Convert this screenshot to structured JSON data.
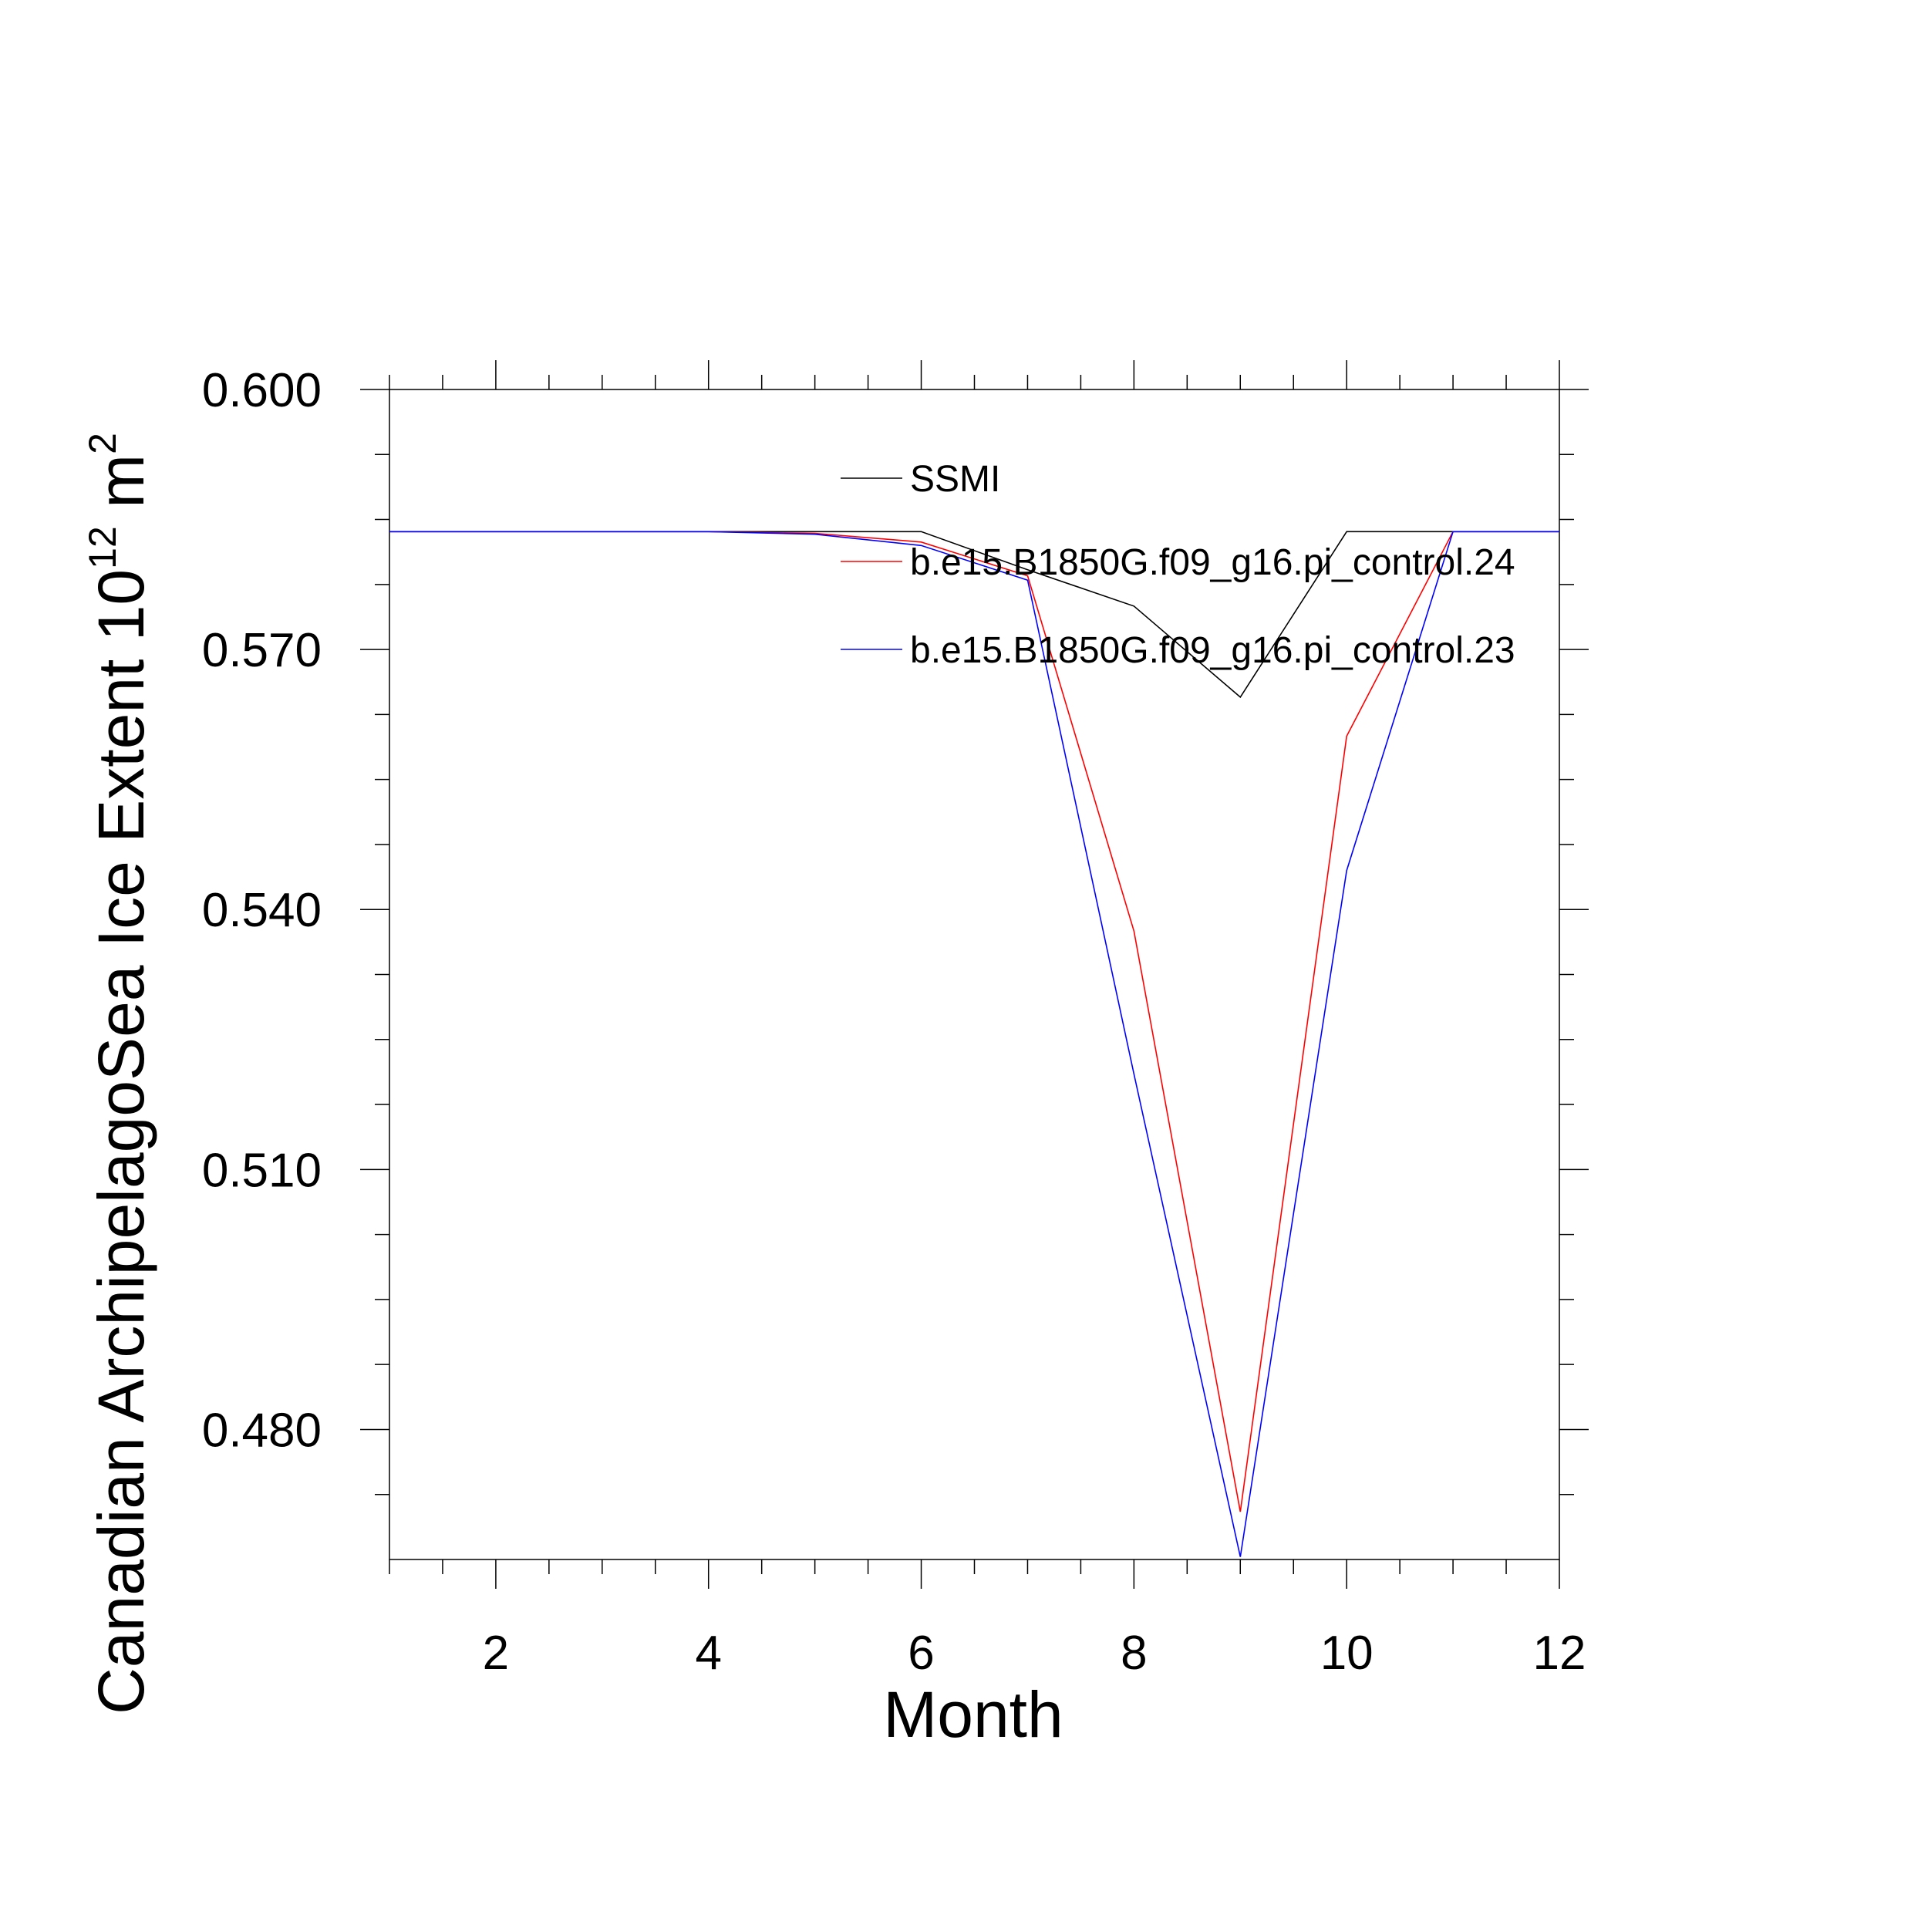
{
  "chart_data": {
    "type": "line",
    "title": "",
    "xlabel": "Month",
    "ylabel": "Canadian ArchipelagoSea Ice Extent 10",
    "ylabel_exponent": "12",
    "ylabel_unit": " m",
    "ylabel_unit_exponent": "2",
    "xlim": [
      1,
      12
    ],
    "ylim": [
      0.465,
      0.6
    ],
    "x_ticks": [
      2,
      4,
      6,
      8,
      10,
      12
    ],
    "x_tick_labels": [
      "2",
      "4",
      "6",
      "8",
      "10",
      "12"
    ],
    "y_ticks": [
      0.48,
      0.51,
      0.54,
      0.57,
      0.6
    ],
    "y_tick_labels": [
      "0.480",
      "0.510",
      "0.540",
      "0.570",
      "0.600"
    ],
    "grid": false,
    "legend_position": "top-right (inside plot)",
    "x": [
      1,
      2,
      3,
      4,
      5,
      6,
      7,
      8,
      9,
      10,
      11,
      12
    ],
    "series": [
      {
        "name": "SSMI",
        "color": "#000000",
        "values": [
          0.5836,
          0.5836,
          0.5836,
          0.5836,
          0.5836,
          0.5836,
          0.5792,
          0.575,
          0.5645,
          0.5836,
          0.5836,
          0.5836
        ]
      },
      {
        "name": "b.e15.B1850G.f09_g16.pi_control.24",
        "color": "#ff0000",
        "values": [
          0.5836,
          0.5836,
          0.5836,
          0.5836,
          0.5834,
          0.5824,
          0.5785,
          0.5375,
          0.4705,
          0.56,
          0.5836,
          0.5836
        ]
      },
      {
        "name": "b.e15.B1850G.f09_g16.pi_control.23",
        "color": "#0000ff",
        "values": [
          0.5836,
          0.5836,
          0.5836,
          0.5836,
          0.5833,
          0.582,
          0.578,
          0.521,
          0.4653,
          0.5445,
          0.5836,
          0.5836
        ]
      }
    ]
  }
}
